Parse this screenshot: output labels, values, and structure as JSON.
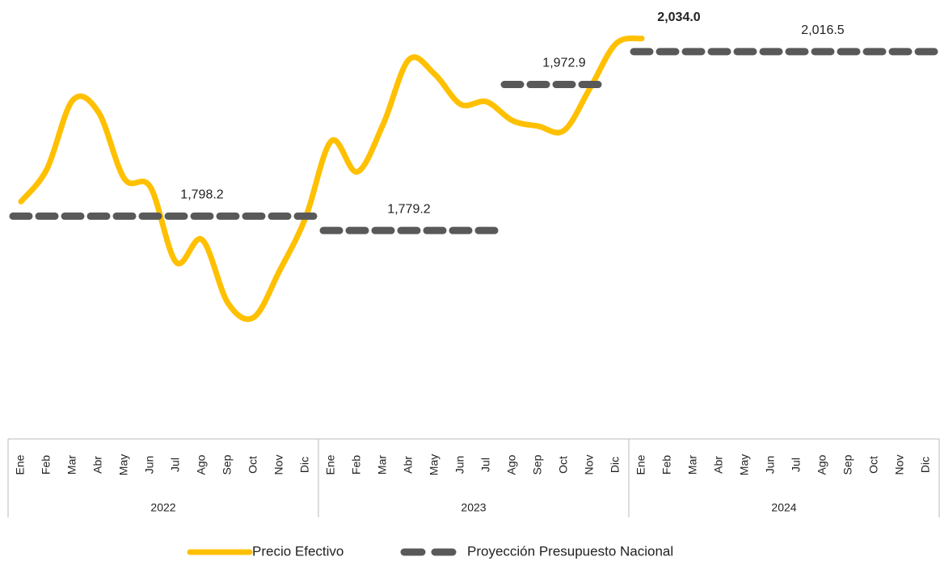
{
  "chart_data": {
    "type": "line",
    "categories": [
      "Ene",
      "Feb",
      "Mar",
      "Abr",
      "May",
      "Jun",
      "Jul",
      "Ago",
      "Sep",
      "Oct",
      "Nov",
      "Dic",
      "Ene",
      "Feb",
      "Mar",
      "Abr",
      "May",
      "Jun",
      "Jul",
      "Ago",
      "Sep",
      "Oct",
      "Nov",
      "Dic",
      "Ene",
      "Feb",
      "Mar",
      "Abr",
      "May",
      "Jun",
      "Jul",
      "Ago",
      "Sep",
      "Oct",
      "Nov",
      "Dic"
    ],
    "years": [
      "2022",
      "2023",
      "2024"
    ],
    "series": [
      {
        "name": "Precio Efectivo",
        "color": "#FFC000",
        "style": "solid",
        "values": [
          1817.6,
          1860.6,
          1952,
          1935.8,
          1847.7,
          1837,
          1737,
          1767,
          1683,
          1664,
          1726,
          1796,
          1898,
          1857,
          1920,
          2006,
          1986.4,
          1946.6,
          1950,
          1925,
          1917.6,
          1912,
          1968,
          2027,
          2034.0,
          null,
          null,
          null,
          null,
          null,
          null,
          null,
          null,
          null,
          null,
          null
        ],
        "value_labels": [
          null,
          null,
          null,
          null,
          null,
          null,
          null,
          null,
          null,
          null,
          null,
          null,
          null,
          null,
          null,
          null,
          null,
          null,
          null,
          null,
          null,
          null,
          null,
          null,
          "2,034.0",
          null,
          null,
          null,
          null,
          null,
          null,
          null,
          null,
          null,
          null,
          null
        ]
      },
      {
        "name": "Proyección Presupuesto Nacional",
        "color": "#595959",
        "style": "dashed",
        "values": [
          1798.2,
          1798.2,
          1798.2,
          1798.2,
          1798.2,
          1798.2,
          1798.2,
          1798.2,
          1798.2,
          1798.2,
          1798.2,
          1798.2,
          1779.2,
          1779.2,
          1779.2,
          1779.2,
          1779.2,
          1779.2,
          1779.2,
          1972.9,
          1972.9,
          1972.9,
          1972.9,
          null,
          2016.5,
          2016.5,
          2016.5,
          2016.5,
          2016.5,
          2016.5,
          2016.5,
          2016.5,
          2016.5,
          2016.5,
          2016.5,
          2016.5
        ],
        "value_labels": [
          null,
          null,
          null,
          null,
          null,
          null,
          null,
          "1,798.2",
          null,
          null,
          null,
          null,
          null,
          null,
          null,
          "1,779.2",
          null,
          null,
          null,
          null,
          null,
          "1,972.9",
          null,
          null,
          null,
          null,
          null,
          null,
          null,
          null,
          null,
          "2,016.5",
          null,
          null,
          null,
          null
        ]
      }
    ],
    "ylim": [
      1504.8,
      2085
    ]
  }
}
